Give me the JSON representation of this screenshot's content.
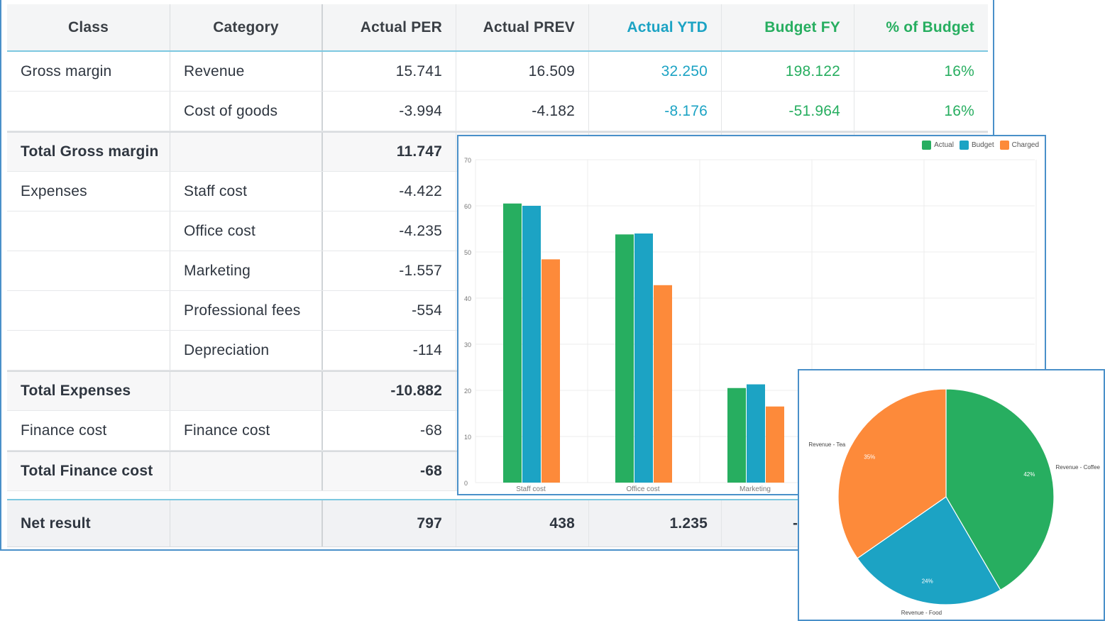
{
  "table": {
    "headers": {
      "class": "Class",
      "category": "Category",
      "actual_per": "Actual PER",
      "actual_prev": "Actual PREV",
      "actual_ytd": "Actual YTD",
      "budget_fy": "Budget FY",
      "pct_budget": "% of Budget"
    },
    "rows": [
      {
        "class": "Gross margin",
        "category": "Revenue",
        "actual_per": "15.741",
        "actual_prev": "16.509",
        "actual_ytd": "32.250",
        "budget_fy": "198.122",
        "pct_budget": "16%"
      },
      {
        "class": "",
        "category": "Cost of goods",
        "actual_per": "-3.994",
        "actual_prev": "-4.182",
        "actual_ytd": "-8.176",
        "budget_fy": "-51.964",
        "pct_budget": "16%"
      },
      {
        "class": "Total Gross margin",
        "category": "",
        "actual_per": "11.747"
      },
      {
        "class": "Expenses",
        "category": "Staff cost",
        "actual_per": "-4.422"
      },
      {
        "class": "",
        "category": "Office cost",
        "actual_per": "-4.235"
      },
      {
        "class": "",
        "category": "Marketing",
        "actual_per": "-1.557"
      },
      {
        "class": "",
        "category": "Professional fees",
        "actual_per": "-554"
      },
      {
        "class": "",
        "category": "Depreciation",
        "actual_per": "-114"
      },
      {
        "class": "Total Expenses",
        "category": "",
        "actual_per": "-10.882"
      },
      {
        "class": "Finance cost",
        "category": "Finance cost",
        "actual_per": "-68"
      },
      {
        "class": "Total Finance cost",
        "category": "",
        "actual_per": "-68"
      }
    ],
    "net_result": {
      "class": "Net result",
      "actual_per": "797",
      "actual_prev": "438",
      "actual_ytd": "1.235",
      "budget_fy_partial": "-"
    }
  },
  "colors": {
    "actual": "#27ae60",
    "budget": "#1ca3c4",
    "charged": "#fd8a3a",
    "ytd_text": "#1ca3c4",
    "budget_text": "#27ae60",
    "frame": "#4a90c9"
  },
  "chart_data": [
    {
      "type": "bar",
      "categories": [
        "Staff cost",
        "Office cost",
        "Marketing"
      ],
      "series": [
        {
          "name": "Actual",
          "values": [
            60.5,
            53.8,
            20.5
          ]
        },
        {
          "name": "Budget",
          "values": [
            60.0,
            54.0,
            21.3
          ]
        },
        {
          "name": "Charged",
          "values": [
            48.4,
            42.8,
            16.5
          ]
        }
      ],
      "ylim": [
        0,
        70
      ],
      "yticks": [
        "0",
        "10",
        "20",
        "30",
        "40",
        "50",
        "60",
        "70"
      ],
      "grid": true,
      "legend": "top-right"
    },
    {
      "type": "pie",
      "slices": [
        {
          "label": "Revenue - Coffee",
          "value": 42,
          "text": "42%"
        },
        {
          "label": "Revenue - Food",
          "value": 24,
          "text": "24%"
        },
        {
          "label": "Revenue - Tea",
          "value": 35,
          "text": "35%"
        }
      ]
    }
  ]
}
